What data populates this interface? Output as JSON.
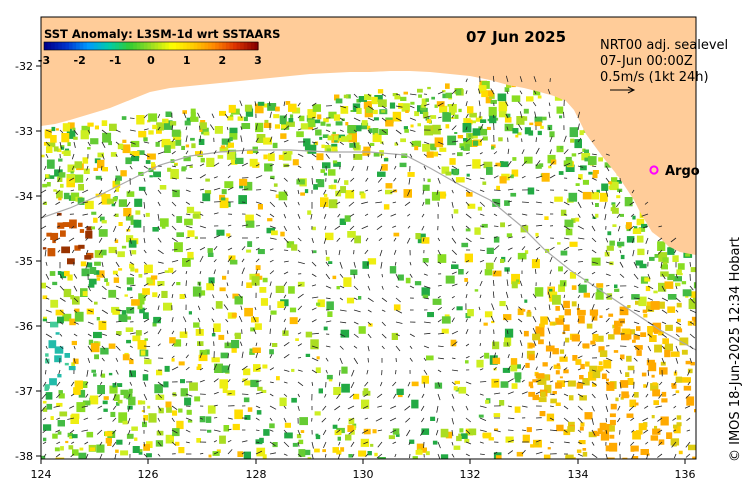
{
  "legend": {
    "title": "SST Anomaly: L3SM-1d wrt SSTAARS",
    "ticks": [
      "-3",
      "-2",
      "-1",
      "0",
      "1",
      "2",
      "3"
    ],
    "colors": [
      "#00008b",
      "#0033cc",
      "#0099ff",
      "#00ccaa",
      "#33cc33",
      "#99dd22",
      "#ffff00",
      "#ffcc00",
      "#ff8800",
      "#dd3300",
      "#880000"
    ]
  },
  "date": "07 Jun 2025",
  "info": {
    "line1": "NRT00 adj. sealevel",
    "line2": "07-Jun 00:00Z",
    "line3": "0.5m/s (1kt 24h)"
  },
  "argo": {
    "label": "Argo",
    "marker_color": "#ff00ff"
  },
  "credit": "© IMOS 18-Jun-2025 12:34 Hobart",
  "axes": {
    "x_ticks": [
      "124",
      "126",
      "128",
      "130",
      "132",
      "134",
      "136"
    ],
    "y_ticks": [
      "-32",
      "-33",
      "-34",
      "-35",
      "-36",
      "-37",
      "-38"
    ],
    "x_range": [
      124,
      136.6
    ],
    "y_range": [
      -31.2,
      -38.0
    ]
  },
  "land_color": "#ffcc99",
  "ocean_color": "#ffffff"
}
